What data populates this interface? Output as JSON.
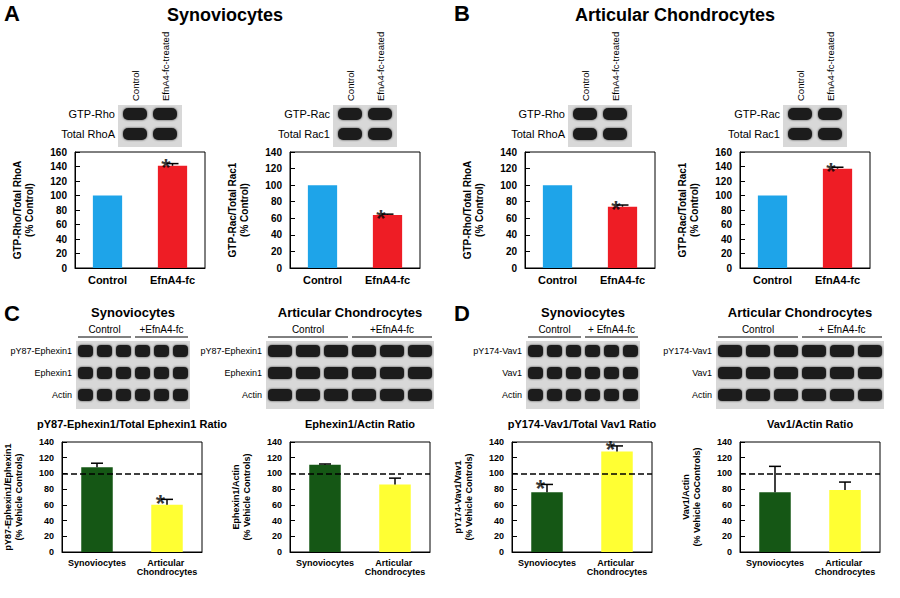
{
  "panels": [
    {
      "letter": "A",
      "title": "Synoviocytes",
      "blots": [
        {
          "columns": [
            "Control",
            "EfnA4-fc-treated"
          ],
          "rows": [
            "GTP-Rho",
            "Total RhoA"
          ]
        },
        {
          "columns": [
            "Control",
            "EfnA4-fc-treated"
          ],
          "rows": [
            "GTP-Rac",
            "Total Rac1"
          ]
        }
      ]
    },
    {
      "letter": "B",
      "title": "Articular Chondrocytes",
      "blots": [
        {
          "columns": [
            "Control",
            "EfnA4-fc-treated"
          ],
          "rows": [
            "GTP-Rho",
            "Total RhoA"
          ]
        },
        {
          "columns": [
            "Control",
            "EfnA4-fc-treated"
          ],
          "rows": [
            "GTP-Rac",
            "Total Rac1"
          ]
        }
      ]
    },
    {
      "letter": "C",
      "blots": [
        {
          "title": "Synoviocytes",
          "groups": [
            "Control",
            "+EfnA4-fc"
          ],
          "rows": [
            "pY87-Ephexin1",
            "Ephexin1",
            "Actin"
          ]
        },
        {
          "title": "Articular Chondrocytes",
          "groups": [
            "Control",
            "+EfnA4-fc"
          ],
          "rows": [
            "pY87-Ephexin1",
            "Ephexin1",
            "Actin"
          ]
        }
      ]
    },
    {
      "letter": "D",
      "blots": [
        {
          "title": "Synoviocytes",
          "groups": [
            "Control",
            "+ EfnA4-fc"
          ],
          "rows": [
            "pY174-Vav1",
            "Vav1",
            "Actin"
          ]
        },
        {
          "title": "Articular Chondrocytes",
          "groups": [
            "Control",
            "+ EfnA4-fc"
          ],
          "rows": [
            "pY174-Vav1",
            "Vav1",
            "Actin"
          ]
        }
      ]
    }
  ],
  "chart_data": [
    {
      "type": "bar",
      "ylabel": [
        "GTP-Rho/Total RhoA",
        "(% Control)"
      ],
      "categories": [
        "Control",
        "EfnA4-fc"
      ],
      "values": [
        100,
        141
      ],
      "errors": [
        null,
        3
      ],
      "colors": [
        "#1ea4e9",
        "#ee1d25"
      ],
      "ylim": [
        0,
        160
      ],
      "yticks": [
        0,
        20,
        40,
        60,
        80,
        100,
        120,
        140,
        160
      ],
      "grid": false,
      "annotations": [
        {
          "category": "EfnA4-fc",
          "text": "*"
        }
      ]
    },
    {
      "type": "bar",
      "ylabel": [
        "GTP-Rac/Total Rac1",
        "(% Control)"
      ],
      "categories": [
        "Control",
        "EfnA4-fc"
      ],
      "values": [
        100,
        64
      ],
      "errors": [
        null,
        1
      ],
      "colors": [
        "#1ea4e9",
        "#ee1d25"
      ],
      "ylim": [
        0,
        140
      ],
      "yticks": [
        0,
        20,
        40,
        60,
        80,
        100,
        120,
        140
      ],
      "grid": false,
      "annotations": [
        {
          "category": "EfnA4-fc",
          "text": "*"
        }
      ]
    },
    {
      "type": "bar",
      "ylabel": [
        "GTP-Rho/Total RhoA",
        "(% Control)"
      ],
      "categories": [
        "Control",
        "EfnA4-fc"
      ],
      "values": [
        100,
        74
      ],
      "errors": [
        null,
        2
      ],
      "colors": [
        "#1ea4e9",
        "#ee1d25"
      ],
      "ylim": [
        0,
        140
      ],
      "yticks": [
        0,
        20,
        40,
        60,
        80,
        100,
        120,
        140
      ],
      "grid": false,
      "annotations": [
        {
          "category": "EfnA4-fc",
          "text": "*"
        }
      ]
    },
    {
      "type": "bar",
      "ylabel": [
        "GTP-Rac/Total Rac1",
        "(% Control)"
      ],
      "categories": [
        "Control",
        "EfnA4-fc"
      ],
      "values": [
        100,
        137
      ],
      "errors": [
        null,
        2
      ],
      "colors": [
        "#1ea4e9",
        "#ee1d25"
      ],
      "ylim": [
        0,
        160
      ],
      "yticks": [
        0,
        20,
        40,
        60,
        80,
        100,
        120,
        140,
        160
      ],
      "grid": false,
      "annotations": [
        {
          "category": "EfnA4-fc",
          "text": "*"
        }
      ]
    },
    {
      "type": "bar",
      "title": "pY87-Ephexin1/Total Ephexin1 Ratio",
      "ylabel": [
        "pY87-Ephexin1/Ephexin1",
        "(% Vehicle Controls)"
      ],
      "categories": [
        "Synoviocytes",
        "Articular Chondrocytes"
      ],
      "values": [
        108,
        60
      ],
      "errors": [
        5,
        7
      ],
      "colors": [
        "#155715",
        "#ffff33"
      ],
      "ylim": [
        0,
        140
      ],
      "yticks": [
        0,
        20,
        40,
        60,
        80,
        100,
        120,
        140
      ],
      "grid": false,
      "reference_line": {
        "value": 100,
        "line_style": "dashed"
      },
      "annotations": [
        {
          "category": "Articular Chondrocytes",
          "text": "*"
        }
      ]
    },
    {
      "type": "bar",
      "title": "Ephexin1/Actin Ratio",
      "ylabel": [
        "Ephexin1/Actin",
        "(% Vehicle Controls)"
      ],
      "categories": [
        "Synoviocytes",
        "Articular Chondrocytes"
      ],
      "values": [
        111,
        86
      ],
      "errors": [
        1,
        8
      ],
      "colors": [
        "#155715",
        "#ffff33"
      ],
      "ylim": [
        0,
        140
      ],
      "yticks": [
        0,
        20,
        40,
        60,
        80,
        100,
        120,
        140
      ],
      "grid": false,
      "reference_line": {
        "value": 100,
        "line_style": "dashed"
      }
    },
    {
      "type": "bar",
      "title": "pY174-Vav1/Total Vav1 Ratio",
      "ylabel": [
        "pY174-Vav1/Vav1",
        "(% Vehicle Controls)"
      ],
      "categories": [
        "Synoviocytes",
        "Articular Chondrocytes"
      ],
      "values": [
        76,
        128
      ],
      "errors": [
        10,
        7
      ],
      "colors": [
        "#155715",
        "#ffff33"
      ],
      "ylim": [
        0,
        140
      ],
      "yticks": [
        0,
        20,
        40,
        60,
        80,
        100,
        120,
        140
      ],
      "grid": false,
      "reference_line": {
        "value": 100,
        "line_style": "dashed"
      },
      "annotations": [
        {
          "category": "Synoviocytes",
          "text": "*"
        },
        {
          "category": "Articular Chondrocytes",
          "text": "*"
        }
      ]
    },
    {
      "type": "bar",
      "title": "Vav1/Actin Ratio",
      "ylabel": [
        "Vav1/Actin",
        "(% Vehicle CoControls)"
      ],
      "categories": [
        "Synoviocytes",
        "Articular Chondrocytes"
      ],
      "values": [
        76,
        79
      ],
      "errors": [
        33,
        10
      ],
      "colors": [
        "#155715",
        "#ffff33"
      ],
      "ylim": [
        0,
        140
      ],
      "yticks": [
        0,
        20,
        40,
        60,
        80,
        100,
        120,
        140
      ],
      "grid": false,
      "reference_line": {
        "value": 100,
        "line_style": "dashed"
      }
    }
  ]
}
